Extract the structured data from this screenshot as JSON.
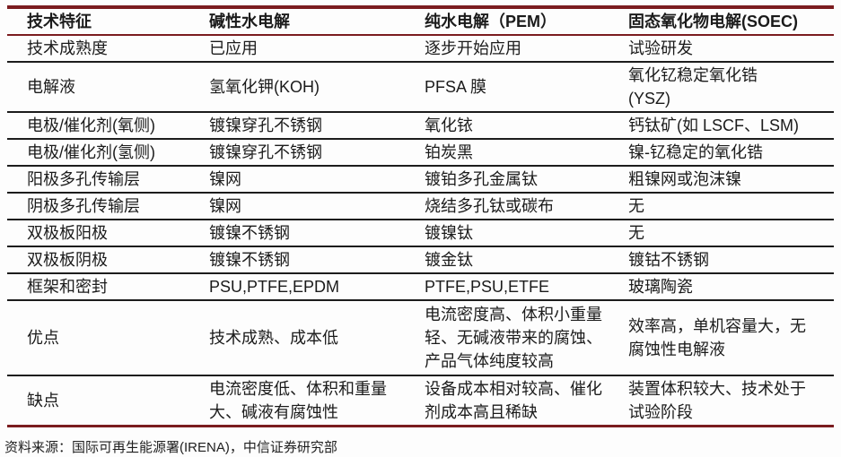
{
  "colors": {
    "accent": "#7b1c1f",
    "rule": "#1c1c1c",
    "text": "#1b1b1b",
    "background": "#fdfdfd"
  },
  "table": {
    "columns": [
      "技术特征",
      "碱性水电解",
      "纯水电解（PEM）",
      "固态氧化物电解(SOEC)"
    ],
    "rows": [
      [
        "技术成熟度",
        "已应用",
        "逐步开始应用",
        "试验研发"
      ],
      [
        "电解液",
        "氢氧化钾(KOH)",
        "PFSA 膜",
        "氧化钇稳定氧化锆\n(YSZ)"
      ],
      [
        "电极/催化剂(氧侧)",
        "镀镍穿孔不锈钢",
        "氧化铱",
        "钙钛矿(如 LSCF、LSM)"
      ],
      [
        "电极/催化剂(氢侧)",
        "镀镍穿孔不锈钢",
        "铂炭黑",
        "镍-钇稳定的氧化锆"
      ],
      [
        "阳极多孔传输层",
        "镍网",
        "镀铂多孔金属钛",
        "粗镍网或泡沫镍"
      ],
      [
        "阴极多孔传输层",
        "镍网",
        "烧结多孔钛或碳布",
        "无"
      ],
      [
        "双极板阳极",
        "镀镍不锈钢",
        "镀镍钛",
        "无"
      ],
      [
        "双极板阴极",
        "镀镍不锈钢",
        "镀金钛",
        "镀钴不锈钢"
      ],
      [
        "框架和密封",
        "PSU,PTFE,EPDM",
        "PTFE,PSU,ETFE",
        "玻璃陶瓷"
      ],
      [
        "优点",
        "技术成熟、成本低",
        "电流密度高、体积小重量轻、无碱液带来的腐蚀、产品气体纯度较高",
        "效率高，单机容量大，无腐蚀性电解液"
      ],
      [
        "缺点",
        "电流密度低、体积和重量大、碱液有腐蚀性",
        "设备成本相对较高、催化剂成本高且稀缺",
        "装置体积较大、技术处于试验阶段"
      ]
    ]
  },
  "footer": {
    "source": "资料来源：国际可再生能源署(IRENA)，中信证券研究部"
  }
}
